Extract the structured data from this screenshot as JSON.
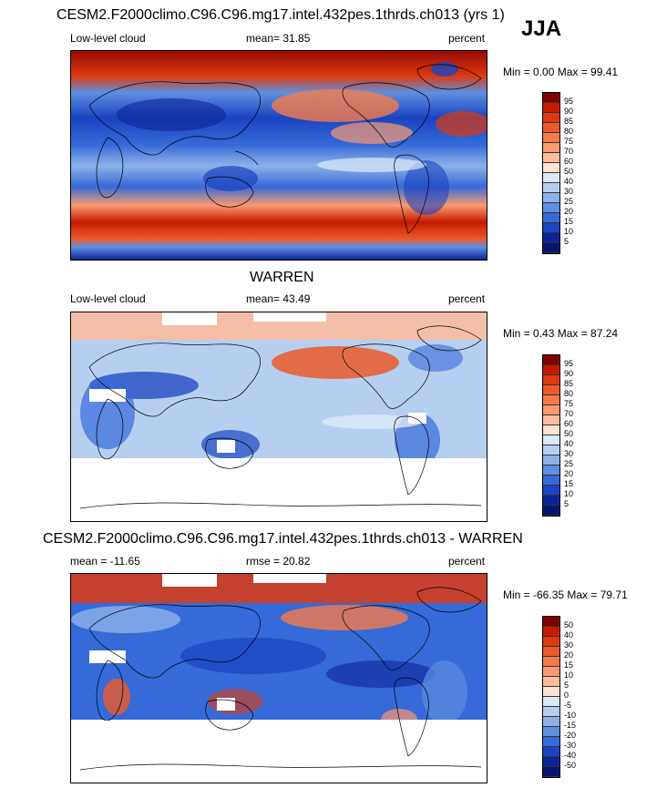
{
  "season": "JJA",
  "panels": [
    {
      "title": "CESM2.F2000climo.C96.C96.mg17.intel.432pes.1thrds.ch013 (yrs 1)",
      "left_label": "Low-level cloud",
      "center_label": "mean=  31.85",
      "right_label": "percent",
      "minmax": "Min =   0.00 Max =  99.41",
      "colorbar": {
        "ticks": [
          "95",
          "90",
          "85",
          "80",
          "75",
          "70",
          "60",
          "50",
          "40",
          "30",
          "25",
          "20",
          "15",
          "10",
          "5"
        ],
        "colors": [
          "#800000",
          "#c41b00",
          "#dc3a10",
          "#eb5a2a",
          "#f57a4a",
          "#f99a72",
          "#fcbd9e",
          "#fde3d2",
          "#dde9f8",
          "#b6cff0",
          "#8eb2e8",
          "#5e8fe0",
          "#356ad8",
          "#1a44c0",
          "#0b2596",
          "#051670"
        ]
      }
    },
    {
      "title": "WARREN",
      "left_label": "Low-level cloud",
      "center_label": "mean=  43.49",
      "right_label": "percent",
      "minmax": "Min =   0.43 Max =  87.24",
      "colorbar": {
        "ticks": [
          "95",
          "90",
          "85",
          "80",
          "75",
          "70",
          "60",
          "50",
          "40",
          "30",
          "25",
          "20",
          "15",
          "10",
          "5"
        ],
        "colors": [
          "#800000",
          "#c41b00",
          "#dc3a10",
          "#eb5a2a",
          "#f57a4a",
          "#f99a72",
          "#fcbd9e",
          "#fde3d2",
          "#dde9f8",
          "#b6cff0",
          "#8eb2e8",
          "#5e8fe0",
          "#356ad8",
          "#1a44c0",
          "#0b2596",
          "#051670"
        ]
      }
    },
    {
      "title": "CESM2.F2000climo.C96.C96.mg17.intel.432pes.1thrds.ch013 - WARREN",
      "left_label": "mean = -11.65",
      "center_label": "rmse =  20.82",
      "right_label": "percent",
      "minmax": "Min = -66.35 Max =  79.71",
      "colorbar": {
        "ticks": [
          "50",
          "40",
          "30",
          "20",
          "15",
          "10",
          "5",
          "0",
          "-5",
          "-10",
          "-15",
          "-20",
          "-30",
          "-40",
          "-50"
        ],
        "colors": [
          "#800000",
          "#c41b00",
          "#dc3a10",
          "#eb5a2a",
          "#f57a4a",
          "#f99a72",
          "#fcbd9e",
          "#fde3d2",
          "#dde9f8",
          "#b6cff0",
          "#8eb2e8",
          "#5e8fe0",
          "#356ad8",
          "#1a44c0",
          "#0b2596",
          "#051670"
        ]
      }
    }
  ]
}
